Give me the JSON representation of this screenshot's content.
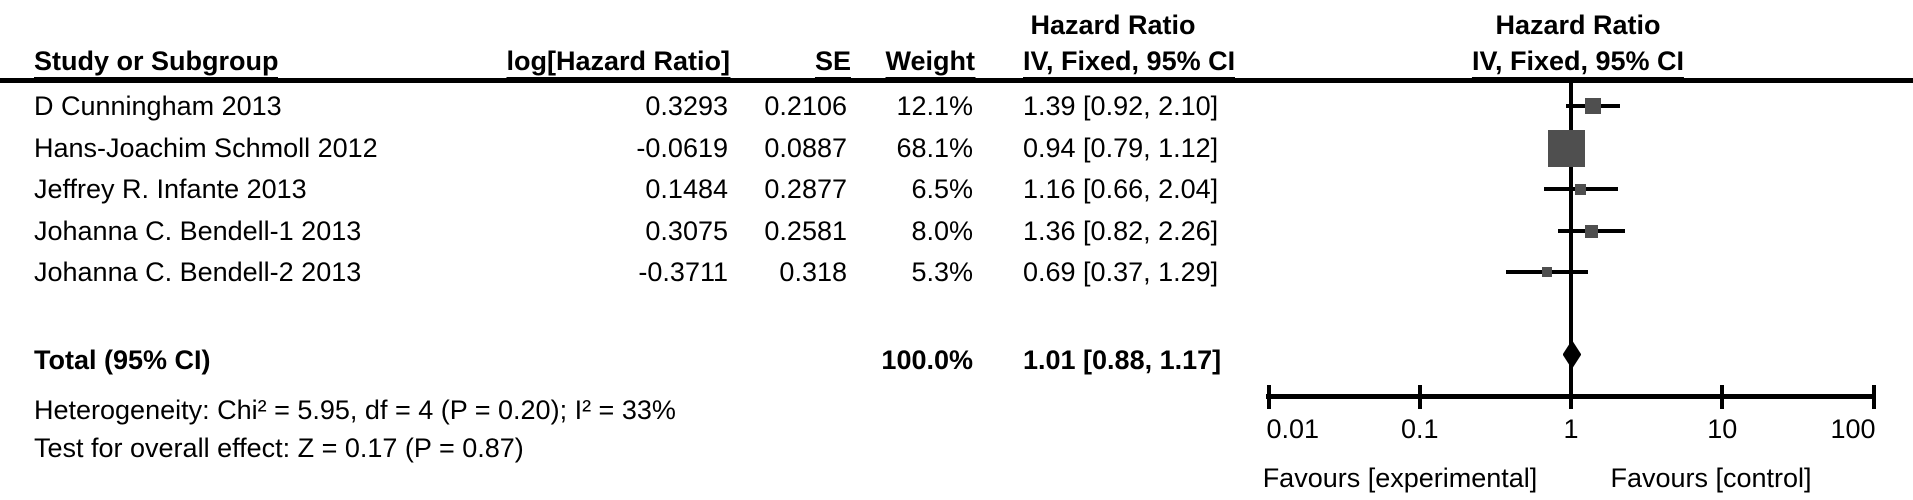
{
  "table": {
    "headers": {
      "study": "Study or Subgroup",
      "log_hr": "log[Hazard Ratio]",
      "se": "SE",
      "weight": "Weight",
      "ci_text_title": "Hazard Ratio",
      "ci_text_sub": "IV, Fixed, 95% CI",
      "plot_title": "Hazard Ratio",
      "plot_sub": "IV, Fixed, 95% CI"
    },
    "rows": [
      {
        "study": "D Cunningham 2013",
        "log_hr": "0.3293",
        "se": "0.2106",
        "weight": "12.1%",
        "ci": "1.39 [0.92, 2.10]"
      },
      {
        "study": "Hans-Joachim Schmoll 2012",
        "log_hr": "-0.0619",
        "se": "0.0887",
        "weight": "68.1%",
        "ci": "0.94 [0.79, 1.12]"
      },
      {
        "study": "Jeffrey R. Infante 2013",
        "log_hr": "0.1484",
        "se": "0.2877",
        "weight": "6.5%",
        "ci": "1.16 [0.66, 2.04]"
      },
      {
        "study": "Johanna C. Bendell-1 2013",
        "log_hr": "0.3075",
        "se": "0.2581",
        "weight": "8.0%",
        "ci": "1.36 [0.82, 2.26]"
      },
      {
        "study": "Johanna C. Bendell-2 2013",
        "log_hr": "-0.3711",
        "se": "0.318",
        "weight": "5.3%",
        "ci": "0.69 [0.37, 1.29]"
      }
    ],
    "total": {
      "label": "Total (95% CI)",
      "weight": "100.0%",
      "ci": "1.01 [0.88, 1.17]"
    },
    "heterogeneity": "Heterogeneity: Chi² = 5.95, df = 4 (P = 0.20); I² = 33%",
    "overall_effect": "Test for overall effect: Z = 0.17 (P = 0.87)"
  },
  "chart_data": {
    "type": "scatter",
    "subtype": "forest-plot",
    "x_scale": "log10",
    "xlim": [
      0.01,
      100
    ],
    "x_ticks": [
      0.01,
      0.1,
      1,
      10,
      100
    ],
    "x_tick_labels": [
      "0.01",
      "0.1",
      "1",
      "10",
      "100"
    ],
    "effect_measure": "Hazard Ratio",
    "model": "IV, Fixed, 95% CI",
    "studies": [
      {
        "name": "D Cunningham 2013",
        "hr": 1.39,
        "ci_low": 0.92,
        "ci_high": 2.1,
        "weight_pct": 12.1
      },
      {
        "name": "Hans-Joachim Schmoll 2012",
        "hr": 0.94,
        "ci_low": 0.79,
        "ci_high": 1.12,
        "weight_pct": 68.1
      },
      {
        "name": "Jeffrey R. Infante 2013",
        "hr": 1.16,
        "ci_low": 0.66,
        "ci_high": 2.04,
        "weight_pct": 6.5
      },
      {
        "name": "Johanna C. Bendell-1 2013",
        "hr": 1.36,
        "ci_low": 0.82,
        "ci_high": 2.26,
        "weight_pct": 8.0
      },
      {
        "name": "Johanna C. Bendell-2 2013",
        "hr": 0.69,
        "ci_low": 0.37,
        "ci_high": 1.29,
        "weight_pct": 5.3
      }
    ],
    "total": {
      "hr": 1.01,
      "ci_low": 0.88,
      "ci_high": 1.17,
      "weight_pct": 100.0
    },
    "favours_left": "Favours [experimental]",
    "favours_right": "Favours [control]"
  },
  "colors": {
    "marker_square": "#4f4f4f",
    "line": "#000000",
    "text": "#000000"
  }
}
